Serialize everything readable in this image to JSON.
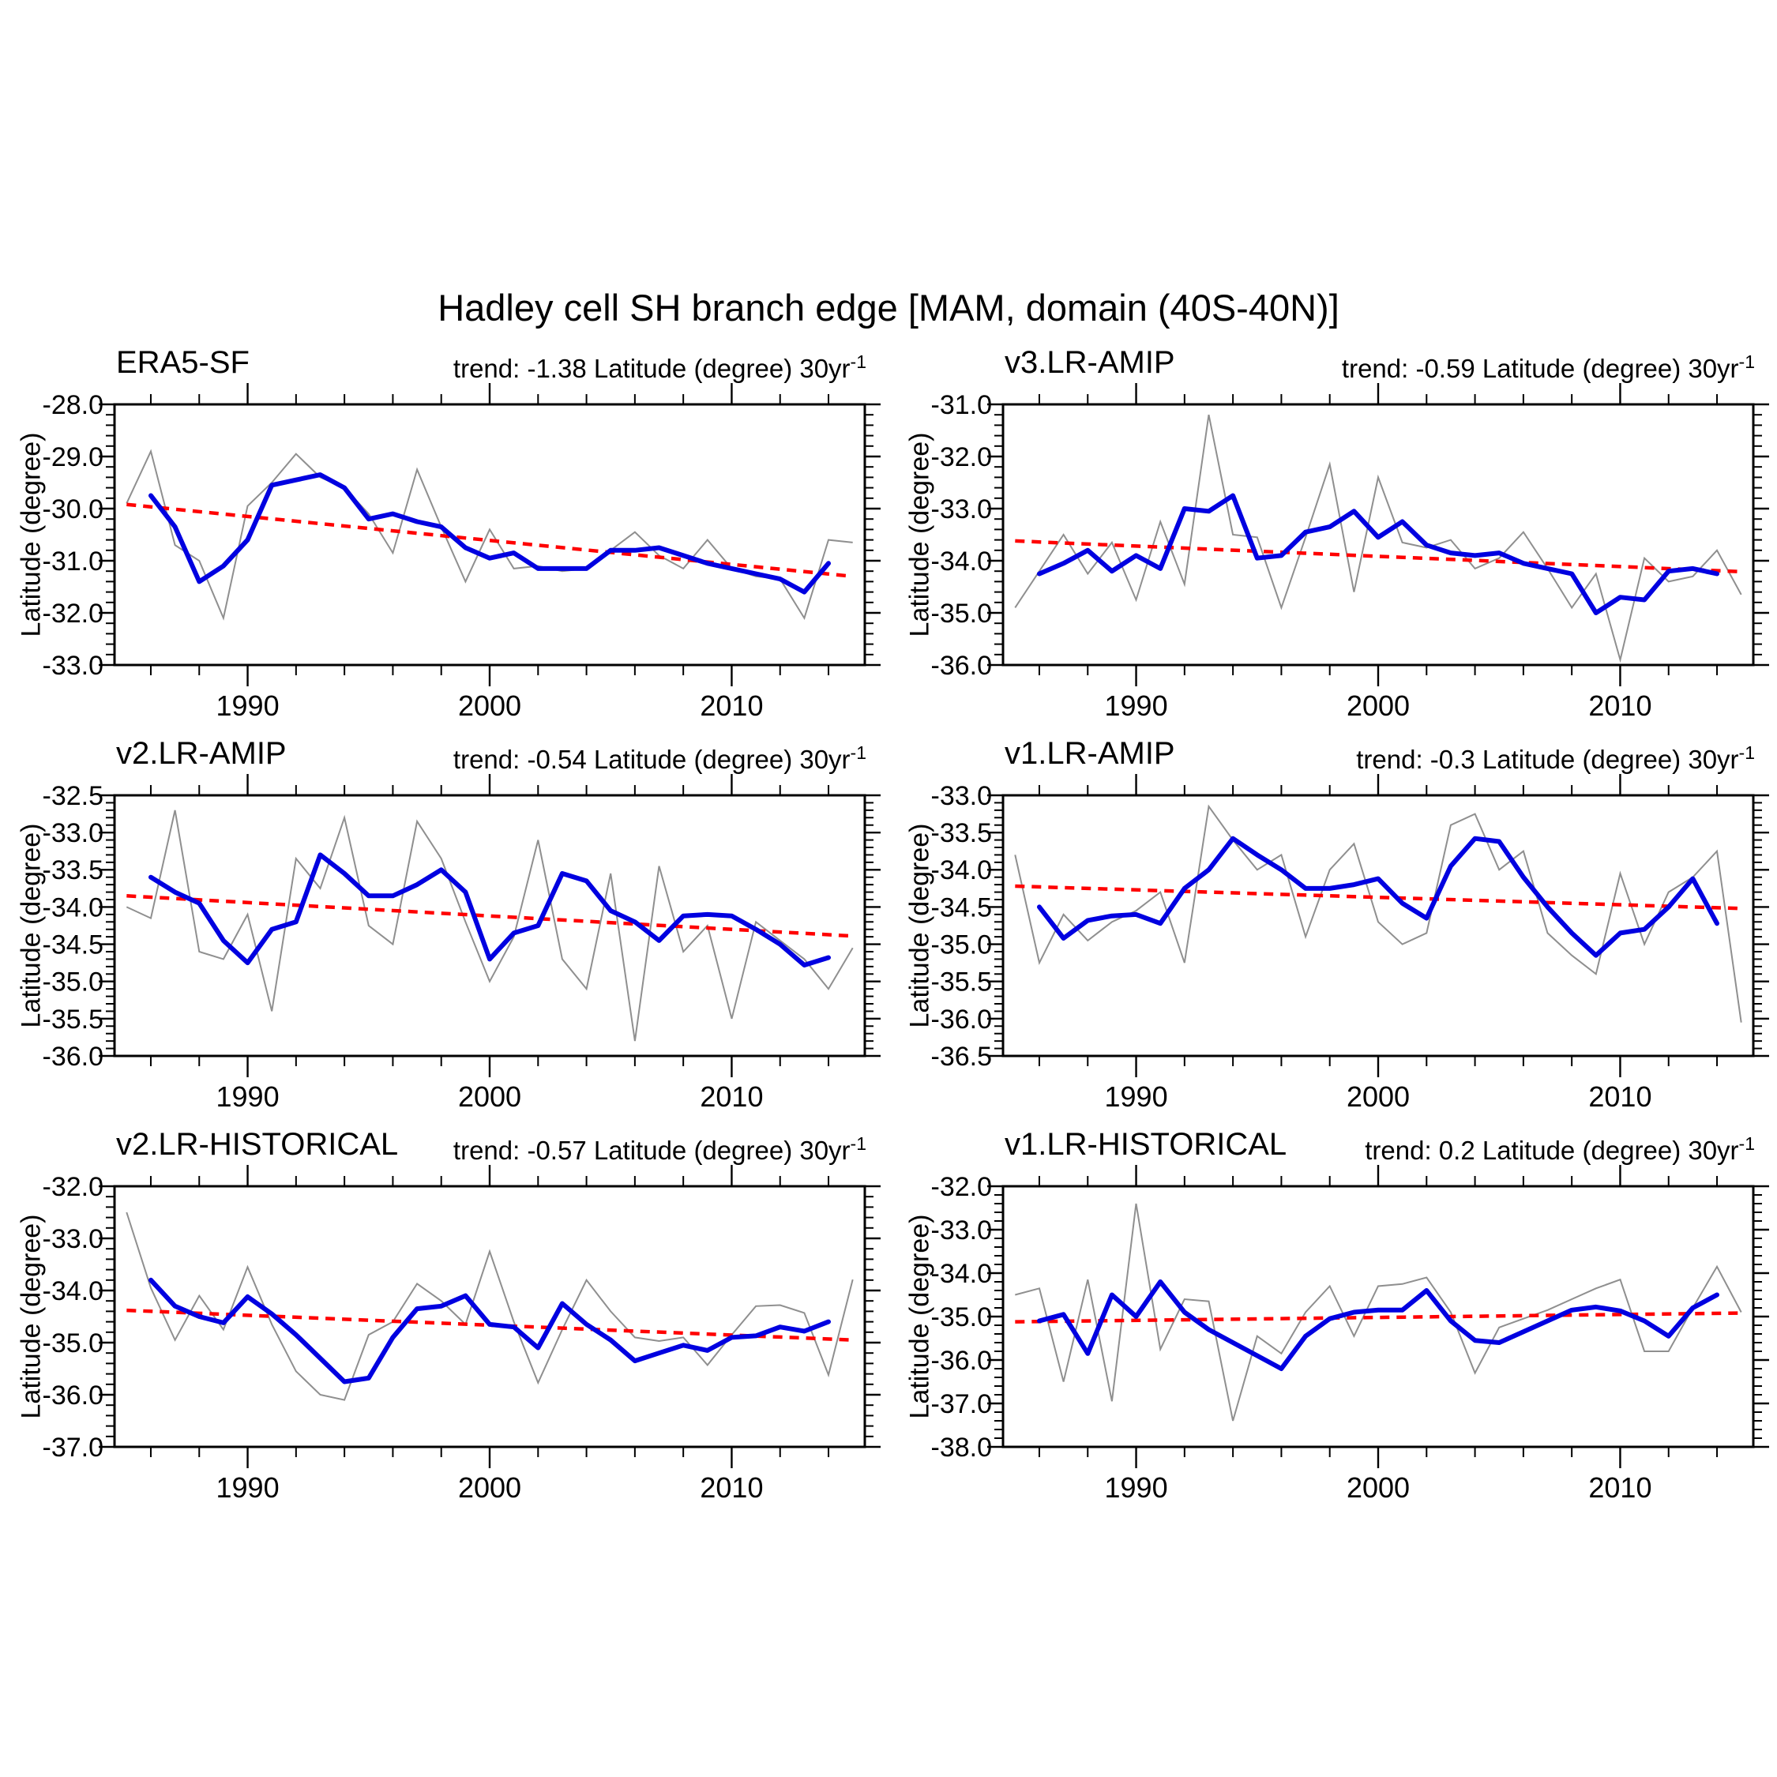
{
  "figure": {
    "title": "Hadley cell SH branch edge [MAM, domain (40S-40N)]"
  },
  "colors": {
    "background": "#ffffff",
    "axis": "#000000",
    "raw_series": "#8f8f8f",
    "smoothed_series": "#0000e0",
    "trend_line": "#ff0000"
  },
  "axes": {
    "x_range": [
      1984.5,
      2015.5
    ],
    "x_major_ticks": [
      1990,
      2000,
      2010
    ],
    "x_minor_step_years": 2,
    "ylabel": "Latitude (degree)"
  },
  "chart_data": [
    {
      "type": "line",
      "title": "ERA5-SF",
      "trend_text": "trend: -1.38 Latitude (degree) 30yr",
      "trend_exponent": "-1",
      "trend_per_30yr": -1.38,
      "ylabel": "Latitude (degree)",
      "ylim": [
        -33.0,
        -28.0
      ],
      "ytick_step": 1.0,
      "years_start": 1985,
      "raw": [
        -29.9,
        -28.9,
        -30.7,
        -31.0,
        -32.1,
        -29.95,
        -29.5,
        -28.95,
        -29.4,
        -29.6,
        -30.1,
        -30.85,
        -29.25,
        -30.35,
        -31.4,
        -30.4,
        -31.15,
        -31.1,
        -31.2,
        -31.15,
        -30.8,
        -30.45,
        -30.9,
        -31.15,
        -30.6,
        -31.15,
        -31.3,
        -31.35,
        -32.1,
        -30.6,
        -30.65
      ],
      "smoothed_years_start": 1986,
      "smoothed": [
        -29.75,
        -30.35,
        -31.4,
        -31.1,
        -30.6,
        -29.55,
        -29.45,
        -29.35,
        -29.6,
        -30.2,
        -30.1,
        -30.25,
        -30.35,
        -30.75,
        -30.95,
        -30.85,
        -31.15,
        -31.15,
        -31.15,
        -30.8,
        -30.8,
        -30.75,
        -30.9,
        -31.05,
        -31.15,
        -31.25,
        -31.35,
        -31.6,
        -31.05
      ],
      "trend": {
        "start_year": 1985,
        "start_value": -29.92,
        "end_year": 2015,
        "end_value": -31.3
      }
    },
    {
      "type": "line",
      "title": "v3.LR-AMIP",
      "trend_text": "trend: -0.59 Latitude (degree) 30yr",
      "trend_exponent": "-1",
      "trend_per_30yr": -0.59,
      "ylabel": "Latitude (degree)",
      "ylim": [
        -36.0,
        -31.0
      ],
      "ytick_step": 1.0,
      "years_start": 1985,
      "raw": [
        -34.9,
        -34.2,
        -33.5,
        -34.25,
        -33.65,
        -34.75,
        -33.25,
        -34.45,
        -31.2,
        -33.5,
        -33.55,
        -34.9,
        -33.55,
        -32.15,
        -34.6,
        -32.4,
        -33.65,
        -33.75,
        -33.6,
        -34.15,
        -33.95,
        -33.45,
        -34.15,
        -34.9,
        -34.25,
        -35.9,
        -33.95,
        -34.4,
        -34.3,
        -33.8,
        -34.65
      ],
      "smoothed_years_start": 1986,
      "smoothed": [
        -34.25,
        -34.05,
        -33.8,
        -34.2,
        -33.9,
        -34.15,
        -33.0,
        -33.05,
        -32.75,
        -33.95,
        -33.9,
        -33.45,
        -33.35,
        -33.05,
        -33.55,
        -33.25,
        -33.7,
        -33.85,
        -33.9,
        -33.85,
        -34.05,
        -34.15,
        -34.25,
        -35.0,
        -34.7,
        -34.75,
        -34.2,
        -34.15,
        -34.25
      ],
      "trend": {
        "start_year": 1985,
        "start_value": -33.62,
        "end_year": 2015,
        "end_value": -34.21
      }
    },
    {
      "type": "line",
      "title": "v2.LR-AMIP",
      "trend_text": "trend: -0.54 Latitude (degree) 30yr",
      "trend_exponent": "-1",
      "trend_per_30yr": -0.54,
      "ylabel": "Latitude (degree)",
      "ylim": [
        -36.0,
        -32.5
      ],
      "ytick_step": 0.5,
      "years_start": 1985,
      "raw": [
        -34.0,
        -34.15,
        -32.7,
        -34.6,
        -34.7,
        -34.1,
        -35.4,
        -33.35,
        -33.75,
        -32.8,
        -34.25,
        -34.5,
        -32.85,
        -33.35,
        -34.2,
        -35.0,
        -34.4,
        -33.1,
        -34.7,
        -35.1,
        -33.55,
        -35.8,
        -33.45,
        -34.6,
        -34.25,
        -35.5,
        -34.2,
        -34.45,
        -34.7,
        -35.1,
        -34.55
      ],
      "smoothed_years_start": 1986,
      "smoothed": [
        -33.6,
        -33.8,
        -33.95,
        -34.45,
        -34.75,
        -34.3,
        -34.2,
        -33.3,
        -33.55,
        -33.85,
        -33.85,
        -33.7,
        -33.5,
        -33.8,
        -34.7,
        -34.35,
        -34.25,
        -33.55,
        -33.65,
        -34.05,
        -34.2,
        -34.45,
        -34.12,
        -34.1,
        -34.12,
        -34.3,
        -34.5,
        -34.78,
        -34.68
      ],
      "trend": {
        "start_year": 1985,
        "start_value": -33.85,
        "end_year": 2015,
        "end_value": -34.39
      }
    },
    {
      "type": "line",
      "title": "v1.LR-AMIP",
      "trend_text": "trend: -0.3 Latitude (degree) 30yr",
      "trend_exponent": "-1",
      "trend_per_30yr": -0.3,
      "ylabel": "Latitude (degree)",
      "ylim": [
        -36.5,
        -33.0
      ],
      "ytick_step": 0.5,
      "years_start": 1985,
      "raw": [
        -33.8,
        -35.25,
        -34.6,
        -34.95,
        -34.7,
        -34.55,
        -34.3,
        -35.25,
        -33.15,
        -33.6,
        -34.0,
        -33.8,
        -34.9,
        -34.0,
        -33.65,
        -34.7,
        -35.0,
        -34.85,
        -33.4,
        -33.25,
        -34.0,
        -33.75,
        -34.85,
        -35.15,
        -35.4,
        -34.05,
        -35.0,
        -34.3,
        -34.1,
        -33.75,
        -36.05
      ],
      "smoothed_years_start": 1986,
      "smoothed": [
        -34.5,
        -34.92,
        -34.68,
        -34.62,
        -34.6,
        -34.72,
        -34.25,
        -34.0,
        -33.58,
        -33.8,
        -34.0,
        -34.25,
        -34.25,
        -34.2,
        -34.12,
        -34.45,
        -34.65,
        -33.95,
        -33.58,
        -33.62,
        -34.1,
        -34.5,
        -34.85,
        -35.15,
        -34.85,
        -34.8,
        -34.5,
        -34.12,
        -34.72
      ],
      "trend": {
        "start_year": 1985,
        "start_value": -34.22,
        "end_year": 2015,
        "end_value": -34.52
      }
    },
    {
      "type": "line",
      "title": "v2.LR-HISTORICAL",
      "trend_text": "trend: -0.57 Latitude (degree) 30yr",
      "trend_exponent": "-1",
      "trend_per_30yr": -0.57,
      "ylabel": "Latitude (degree)",
      "ylim": [
        -37.0,
        -32.0
      ],
      "ytick_step": 1.0,
      "years_start": 1985,
      "raw": [
        -32.5,
        -33.95,
        -34.95,
        -34.1,
        -34.75,
        -33.55,
        -34.65,
        -35.55,
        -36.0,
        -36.1,
        -34.85,
        -34.6,
        -33.87,
        -34.2,
        -34.65,
        -33.25,
        -34.6,
        -35.77,
        -34.75,
        -33.8,
        -34.4,
        -34.9,
        -34.97,
        -34.9,
        -35.43,
        -34.85,
        -34.3,
        -34.28,
        -34.43,
        -35.62,
        -33.79
      ],
      "smoothed_years_start": 1986,
      "smoothed": [
        -33.8,
        -34.3,
        -34.5,
        -34.62,
        -34.12,
        -34.45,
        -34.85,
        -35.3,
        -35.75,
        -35.68,
        -34.9,
        -34.35,
        -34.3,
        -34.1,
        -34.65,
        -34.7,
        -35.1,
        -34.25,
        -34.65,
        -34.95,
        -35.35,
        -35.2,
        -35.05,
        -35.15,
        -34.9,
        -34.87,
        -34.7,
        -34.78,
        -34.6
      ],
      "trend": {
        "start_year": 1985,
        "start_value": -34.38,
        "end_year": 2015,
        "end_value": -34.95
      }
    },
    {
      "type": "line",
      "title": "v1.LR-HISTORICAL",
      "trend_text": "trend: 0.2 Latitude (degree) 30yr",
      "trend_exponent": "-1",
      "trend_per_30yr": 0.2,
      "ylabel": "Latitude (degree)",
      "ylim": [
        -38.0,
        -32.0
      ],
      "ytick_step": 1.0,
      "years_start": 1985,
      "raw": [
        -34.5,
        -34.35,
        -36.5,
        -34.15,
        -36.95,
        -32.4,
        -35.75,
        -34.6,
        -34.65,
        -37.4,
        -35.45,
        -35.85,
        -34.9,
        -34.3,
        -35.45,
        -34.3,
        -34.25,
        -34.1,
        -34.9,
        -36.3,
        -35.25,
        -35.05,
        -34.85,
        -34.6,
        -34.35,
        -34.15,
        -35.8,
        -35.8,
        -34.8,
        -33.85,
        -34.9
      ],
      "smoothed_years_start": 1986,
      "smoothed": [
        -35.1,
        -34.95,
        -35.85,
        -34.5,
        -35.0,
        -34.2,
        -34.9,
        -35.3,
        -35.6,
        -35.9,
        -36.2,
        -35.45,
        -35.05,
        -34.9,
        -34.85,
        -34.85,
        -34.4,
        -35.1,
        -35.55,
        -35.6,
        -35.35,
        -35.1,
        -34.85,
        -34.78,
        -34.87,
        -35.1,
        -35.45,
        -34.8,
        -34.5
      ],
      "trend": {
        "start_year": 1985,
        "start_value": -35.12,
        "end_year": 2015,
        "end_value": -34.92
      }
    }
  ]
}
